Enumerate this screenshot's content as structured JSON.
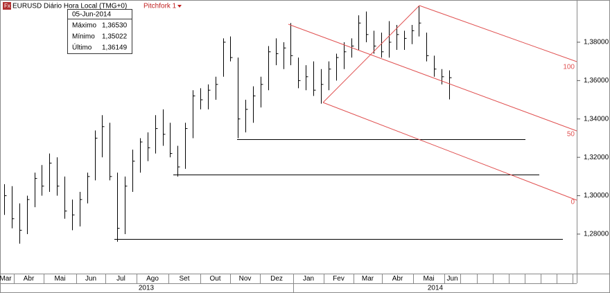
{
  "chart_data": {
    "type": "ohlc",
    "title": "EURUSD Diário Hora Local (TMG+0)",
    "study": "Pitchfork 1",
    "info": {
      "date": "05-Jun-2014",
      "rows": [
        [
          "Máximo",
          "1,36530"
        ],
        [
          "Mínimo",
          "1,35022"
        ],
        [
          "Último",
          "1,36149"
        ]
      ]
    },
    "ylim": [
      1.2594,
      1.402
    ],
    "yticks": [
      {
        "value": 1.28,
        "label": "1,28000"
      },
      {
        "value": 1.3,
        "label": "1,30000"
      },
      {
        "value": 1.32,
        "label": "1,32000"
      },
      {
        "value": 1.34,
        "label": "1,34000"
      },
      {
        "value": 1.36,
        "label": "1,36000"
      },
      {
        "value": 1.38,
        "label": "1,38000"
      }
    ],
    "months": [
      "Mar",
      "Abr",
      "Mai",
      "Jun",
      "Jul",
      "Ago",
      "Set",
      "Out",
      "Nov",
      "Dez",
      "Jan",
      "Fev",
      "Mar",
      "Abr",
      "Mai",
      "Jun"
    ],
    "years": [
      "2013",
      "2014"
    ],
    "pitchfork_levels": [
      100,
      50,
      0
    ],
    "support_levels": [
      1.3295,
      1.311,
      1.2773
    ],
    "color": "#000000",
    "pitchfork_color": "#e05050",
    "bars": [
      {
        "high": 1.306,
        "low": 1.29,
        "close": 1.3
      },
      {
        "high": 1.305,
        "low": 1.283,
        "close": 1.288
      },
      {
        "high": 1.296,
        "low": 1.275,
        "close": 1.282
      },
      {
        "high": 1.3,
        "low": 1.28,
        "close": 1.298
      },
      {
        "high": 1.312,
        "low": 1.294,
        "close": 1.309
      },
      {
        "high": 1.316,
        "low": 1.3,
        "close": 1.305
      },
      {
        "high": 1.322,
        "low": 1.302,
        "close": 1.317
      },
      {
        "high": 1.32,
        "low": 1.3,
        "close": 1.305
      },
      {
        "high": 1.31,
        "low": 1.288,
        "close": 1.292
      },
      {
        "high": 1.298,
        "low": 1.282,
        "close": 1.29
      },
      {
        "high": 1.302,
        "low": 1.284,
        "close": 1.298
      },
      {
        "high": 1.312,
        "low": 1.296,
        "close": 1.31
      },
      {
        "high": 1.334,
        "low": 1.308,
        "close": 1.33
      },
      {
        "high": 1.342,
        "low": 1.32,
        "close": 1.336
      },
      {
        "high": 1.338,
        "low": 1.308,
        "close": 1.31
      },
      {
        "high": 1.312,
        "low": 1.276,
        "close": 1.283
      },
      {
        "high": 1.31,
        "low": 1.28,
        "close": 1.305
      },
      {
        "high": 1.324,
        "low": 1.302,
        "close": 1.318
      },
      {
        "high": 1.33,
        "low": 1.312,
        "close": 1.328
      },
      {
        "high": 1.333,
        "low": 1.318,
        "close": 1.325
      },
      {
        "high": 1.342,
        "low": 1.322,
        "close": 1.335
      },
      {
        "high": 1.345,
        "low": 1.326,
        "close": 1.332
      },
      {
        "high": 1.338,
        "low": 1.32,
        "close": 1.322
      },
      {
        "high": 1.326,
        "low": 1.31,
        "close": 1.315
      },
      {
        "high": 1.338,
        "low": 1.314,
        "close": 1.335
      },
      {
        "high": 1.355,
        "low": 1.33,
        "close": 1.352
      },
      {
        "high": 1.356,
        "low": 1.345,
        "close": 1.35
      },
      {
        "high": 1.358,
        "low": 1.345,
        "close": 1.355
      },
      {
        "high": 1.362,
        "low": 1.35,
        "close": 1.358
      },
      {
        "high": 1.382,
        "low": 1.362,
        "close": 1.38
      },
      {
        "high": 1.383,
        "low": 1.37,
        "close": 1.372
      },
      {
        "high": 1.372,
        "low": 1.33,
        "close": 1.34
      },
      {
        "high": 1.35,
        "low": 1.333,
        "close": 1.345
      },
      {
        "high": 1.357,
        "low": 1.338,
        "close": 1.352
      },
      {
        "high": 1.362,
        "low": 1.346,
        "close": 1.358
      },
      {
        "high": 1.378,
        "low": 1.355,
        "close": 1.375
      },
      {
        "high": 1.382,
        "low": 1.368,
        "close": 1.374
      },
      {
        "high": 1.38,
        "low": 1.366,
        "close": 1.377
      },
      {
        "high": 1.39,
        "low": 1.368,
        "close": 1.373
      },
      {
        "high": 1.372,
        "low": 1.356,
        "close": 1.36
      },
      {
        "high": 1.368,
        "low": 1.355,
        "close": 1.362
      },
      {
        "high": 1.37,
        "low": 1.352,
        "close": 1.355
      },
      {
        "high": 1.366,
        "low": 1.348,
        "close": 1.358
      },
      {
        "high": 1.37,
        "low": 1.355,
        "close": 1.366
      },
      {
        "high": 1.374,
        "low": 1.36,
        "close": 1.372
      },
      {
        "high": 1.38,
        "low": 1.366,
        "close": 1.375
      },
      {
        "high": 1.382,
        "low": 1.372,
        "close": 1.378
      },
      {
        "high": 1.394,
        "low": 1.376,
        "close": 1.39
      },
      {
        "high": 1.396,
        "low": 1.38,
        "close": 1.384
      },
      {
        "high": 1.386,
        "low": 1.374,
        "close": 1.378
      },
      {
        "high": 1.385,
        "low": 1.372,
        "close": 1.375
      },
      {
        "high": 1.391,
        "low": 1.372,
        "close": 1.38
      },
      {
        "high": 1.389,
        "low": 1.376,
        "close": 1.384
      },
      {
        "high": 1.386,
        "low": 1.376,
        "close": 1.382
      },
      {
        "high": 1.389,
        "low": 1.379,
        "close": 1.386
      },
      {
        "high": 1.399,
        "low": 1.383,
        "close": 1.39
      },
      {
        "high": 1.385,
        "low": 1.37,
        "close": 1.373
      },
      {
        "high": 1.373,
        "low": 1.362,
        "close": 1.366
      },
      {
        "high": 1.366,
        "low": 1.358,
        "close": 1.362
      },
      {
        "high": 1.3653,
        "low": 1.3502,
        "close": 1.3615
      }
    ]
  }
}
